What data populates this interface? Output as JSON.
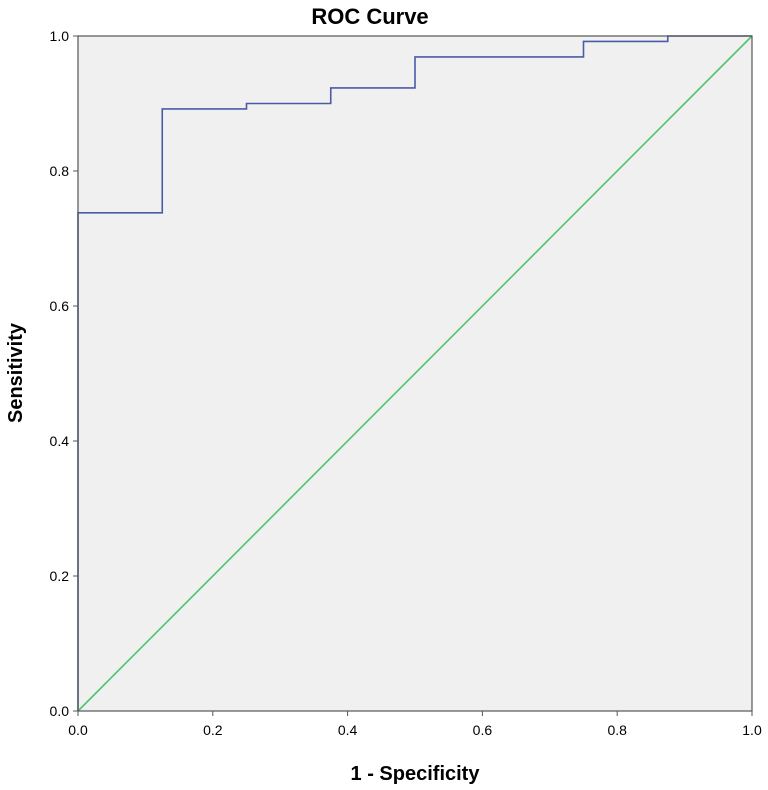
{
  "chart_data": {
    "type": "line",
    "title": "ROC Curve",
    "xlabel": "1 - Specificity",
    "ylabel": "Sensitivity",
    "xlim": [
      0,
      1
    ],
    "ylim": [
      0,
      1
    ],
    "x_ticks": [
      "0.0",
      "0.2",
      "0.4",
      "0.6",
      "0.8",
      "1.0"
    ],
    "y_ticks": [
      "0.0",
      "0.2",
      "0.4",
      "0.6",
      "0.8",
      "1.0"
    ],
    "grid": false,
    "legend": "none",
    "series": [
      {
        "color": "#4a5ca8",
        "style": "step",
        "x": [
          0.0,
          0.0,
          0.125,
          0.125,
          0.25,
          0.25,
          0.375,
          0.375,
          0.5,
          0.5,
          0.75,
          0.75,
          0.875,
          0.875,
          1.0
        ],
        "y": [
          0.0,
          0.738,
          0.738,
          0.892,
          0.892,
          0.9,
          0.9,
          0.923,
          0.923,
          0.969,
          0.969,
          0.992,
          0.992,
          1.0,
          1.0
        ]
      },
      {
        "color": "#4fc46a",
        "style": "line",
        "x": [
          0.0,
          1.0
        ],
        "y": [
          0.0,
          1.0
        ]
      }
    ],
    "plot_background": "#f0f0f0"
  }
}
